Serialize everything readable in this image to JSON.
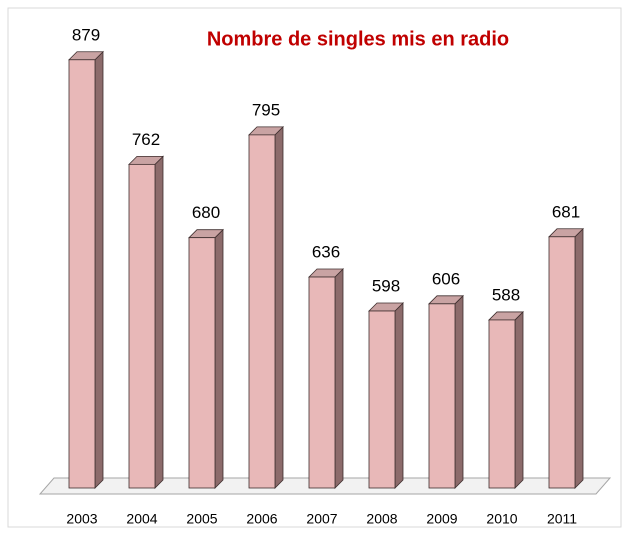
{
  "chart_data": {
    "type": "bar",
    "title": "Nombre de singles mis en radio",
    "categories": [
      "2003",
      "2004",
      "2005",
      "2006",
      "2007",
      "2008",
      "2009",
      "2010",
      "2011"
    ],
    "values": [
      879,
      762,
      680,
      795,
      636,
      598,
      606,
      588,
      681
    ],
    "color": "#e8b8b8",
    "ylim": [
      400,
      900
    ]
  }
}
